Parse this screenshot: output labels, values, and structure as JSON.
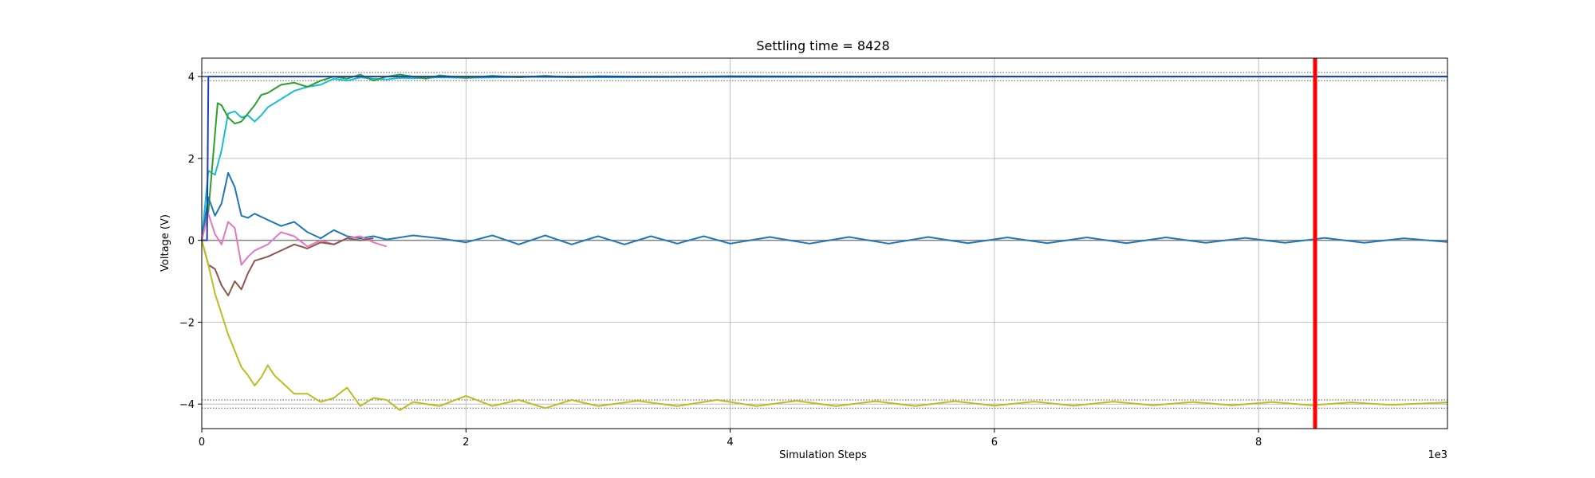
{
  "chart_data": {
    "type": "line",
    "title": "Settling time = 8428",
    "xlabel": "Simulation Steps",
    "ylabel": "Voltage (V)",
    "x_offset_label": "1e3",
    "xlim": [
      0,
      9.43
    ],
    "ylim": [
      -4.6,
      4.45
    ],
    "xticks": [
      0,
      2,
      4,
      6,
      8
    ],
    "yticks": [
      -4,
      -2,
      0,
      2,
      4
    ],
    "grid": true,
    "settling_marker": {
      "x": 8.428,
      "color": "#ff0000"
    },
    "reference_lines": [
      {
        "y": 4.1,
        "color": "#555555",
        "style": "dotted"
      },
      {
        "y": 3.9,
        "color": "#555555",
        "style": "dotted"
      },
      {
        "y": -3.9,
        "color": "#555555",
        "style": "dotted"
      },
      {
        "y": -4.1,
        "color": "#555555",
        "style": "dotted"
      },
      {
        "y": 4.0,
        "color": "#1f3fae",
        "style": "solid"
      },
      {
        "y": 0.0,
        "color": "#808080",
        "style": "solid"
      }
    ],
    "series": [
      {
        "color": "#17becf",
        "x": [
          0,
          0.05,
          0.1,
          0.15,
          0.2,
          0.25,
          0.3,
          0.35,
          0.4,
          0.45,
          0.5,
          0.6,
          0.7,
          0.8,
          0.9,
          1.0,
          1.1,
          1.2,
          1.3,
          1.4,
          1.5,
          1.6,
          1.8,
          2.0,
          2.5,
          3.0,
          4.0,
          5.0,
          6.0,
          7.0,
          8.0,
          9.0,
          9.43
        ],
        "y": [
          0,
          1.7,
          1.6,
          2.2,
          3.1,
          3.15,
          3.0,
          3.05,
          2.9,
          3.05,
          3.25,
          3.45,
          3.65,
          3.75,
          3.8,
          3.95,
          3.9,
          3.98,
          3.95,
          3.93,
          3.97,
          3.96,
          3.98,
          3.97,
          3.99,
          3.98,
          3.99,
          3.99,
          4.0,
          4.0,
          4.0,
          4.0,
          4.0
        ]
      },
      {
        "color": "#2ca02c",
        "x": [
          0,
          0.05,
          0.1,
          0.12,
          0.15,
          0.2,
          0.25,
          0.3,
          0.35,
          0.4,
          0.45,
          0.5,
          0.55,
          0.6,
          0.7,
          0.8,
          0.9,
          1.0,
          1.1,
          1.2,
          1.3,
          1.4,
          1.5,
          1.6,
          1.7,
          1.8,
          2.0,
          2.2,
          2.4,
          2.6,
          2.8,
          3.0,
          3.5,
          4.0,
          5.0,
          6.0,
          7.0,
          8.0,
          9.0,
          9.43
        ],
        "y": [
          0,
          0.7,
          2.6,
          3.35,
          3.3,
          3.0,
          2.85,
          2.9,
          3.1,
          3.3,
          3.55,
          3.6,
          3.7,
          3.8,
          3.85,
          3.75,
          3.9,
          4.0,
          3.95,
          4.05,
          3.9,
          4.0,
          4.05,
          4.0,
          3.95,
          4.03,
          3.97,
          4.02,
          3.98,
          4.02,
          3.98,
          4.01,
          3.99,
          4.01,
          4.0,
          4.0,
          4.0,
          4.0,
          4.0,
          4.0
        ]
      },
      {
        "color": "#1f77b4",
        "x": [
          0,
          0.05,
          0.1,
          0.15,
          0.2,
          0.25,
          0.3,
          0.35,
          0.4,
          0.5,
          0.6,
          0.7,
          0.8,
          0.9,
          1.0,
          1.1,
          1.2,
          1.3,
          1.4,
          1.6,
          1.8,
          2.0,
          2.2,
          2.4,
          2.6,
          2.8,
          3.0,
          3.2,
          3.4,
          3.6,
          3.8,
          4.0,
          4.3,
          4.6,
          4.9,
          5.2,
          5.5,
          5.8,
          6.1,
          6.4,
          6.7,
          7.0,
          7.3,
          7.6,
          7.9,
          8.2,
          8.5,
          8.8,
          9.1,
          9.43
        ],
        "y": [
          0,
          1.05,
          0.6,
          0.9,
          1.65,
          1.3,
          0.6,
          0.55,
          0.65,
          0.5,
          0.35,
          0.45,
          0.2,
          0.05,
          0.25,
          0.1,
          0.05,
          0.1,
          0.02,
          0.12,
          0.05,
          -0.05,
          0.12,
          -0.1,
          0.12,
          -0.1,
          0.1,
          -0.1,
          0.1,
          -0.08,
          0.1,
          -0.08,
          0.08,
          -0.08,
          0.08,
          -0.08,
          0.08,
          -0.07,
          0.07,
          -0.07,
          0.07,
          -0.07,
          0.07,
          -0.06,
          0.06,
          -0.06,
          0.06,
          -0.06,
          0.05,
          -0.04
        ]
      },
      {
        "color": "#e377c2",
        "x": [
          0,
          0.05,
          0.1,
          0.15,
          0.2,
          0.25,
          0.3,
          0.35,
          0.4,
          0.5,
          0.6,
          0.7,
          0.8,
          0.9,
          1.0,
          1.1,
          1.2,
          1.3,
          1.4
        ],
        "y": [
          0,
          0.65,
          0.15,
          -0.1,
          0.45,
          0.3,
          -0.6,
          -0.4,
          -0.25,
          -0.1,
          0.2,
          0.1,
          -0.15,
          0.0,
          -0.1,
          0.05,
          0.1,
          -0.05,
          -0.15
        ]
      },
      {
        "color": "#8c564b",
        "x": [
          0,
          0.05,
          0.1,
          0.15,
          0.2,
          0.25,
          0.3,
          0.35,
          0.4,
          0.5,
          0.6,
          0.7,
          0.8,
          0.9,
          1.0,
          1.1,
          1.2,
          1.3
        ],
        "y": [
          0,
          -0.6,
          -0.7,
          -1.1,
          -1.35,
          -1.0,
          -1.2,
          -0.8,
          -0.5,
          -0.4,
          -0.25,
          -0.1,
          -0.2,
          -0.05,
          -0.1,
          0.05,
          0.0,
          0.05
        ]
      },
      {
        "color": "#bcbd22",
        "x": [
          0,
          0.05,
          0.1,
          0.15,
          0.2,
          0.25,
          0.3,
          0.35,
          0.4,
          0.45,
          0.5,
          0.55,
          0.6,
          0.7,
          0.8,
          0.9,
          1.0,
          1.1,
          1.2,
          1.3,
          1.4,
          1.5,
          1.6,
          1.8,
          2.0,
          2.2,
          2.4,
          2.6,
          2.8,
          3.0,
          3.3,
          3.6,
          3.9,
          4.2,
          4.5,
          4.8,
          5.1,
          5.4,
          5.7,
          6.0,
          6.3,
          6.6,
          6.9,
          7.2,
          7.5,
          7.8,
          8.1,
          8.4,
          8.7,
          9.0,
          9.43
        ],
        "y": [
          0,
          -0.6,
          -1.3,
          -1.8,
          -2.3,
          -2.7,
          -3.1,
          -3.3,
          -3.55,
          -3.35,
          -3.05,
          -3.3,
          -3.45,
          -3.75,
          -3.75,
          -3.95,
          -3.85,
          -3.6,
          -4.05,
          -3.85,
          -3.9,
          -4.15,
          -3.95,
          -4.05,
          -3.8,
          -4.05,
          -3.9,
          -4.1,
          -3.9,
          -4.05,
          -3.92,
          -4.05,
          -3.9,
          -4.05,
          -3.92,
          -4.05,
          -3.93,
          -4.05,
          -3.93,
          -4.04,
          -3.94,
          -4.04,
          -3.94,
          -4.03,
          -3.95,
          -4.03,
          -3.95,
          -4.03,
          -3.96,
          -4.02,
          -3.96
        ]
      },
      {
        "color": "#1f3fae",
        "x": [
          0,
          0.04,
          0.05,
          9.43
        ],
        "y": [
          0,
          0,
          4.0,
          4.0
        ]
      }
    ]
  }
}
